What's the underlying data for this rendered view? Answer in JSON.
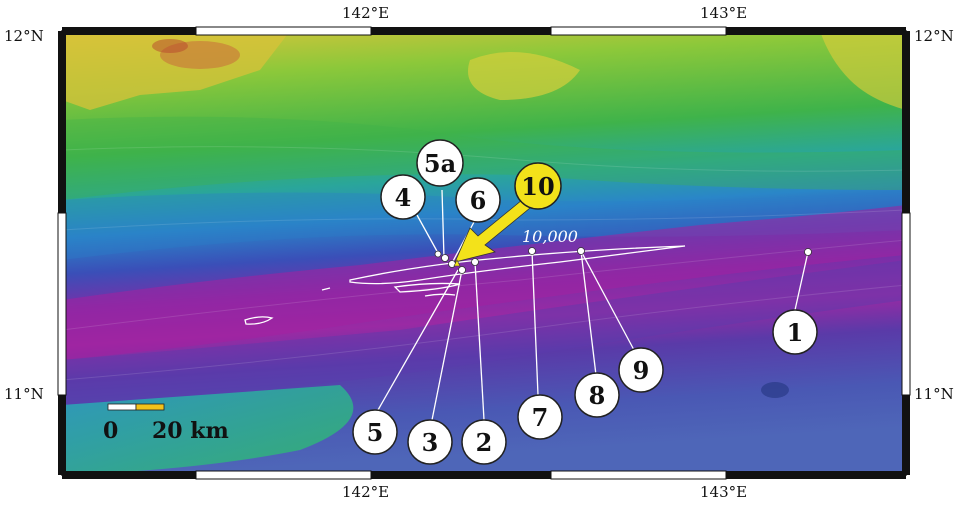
{
  "axes": {
    "top_left_lon": "142°E",
    "top_right_lon": "143°E",
    "bottom_left_lon": "142°E",
    "bottom_right_lon": "143°E",
    "left_top_lat": "12°N",
    "left_bottom_lat": "11°N",
    "right_top_lat": "12°N",
    "right_bottom_lat": "11°N"
  },
  "contour_label": "10,000",
  "scale_bar": {
    "zero": "0",
    "distance": "20 km"
  },
  "stations": [
    {
      "label": "1",
      "fill": "#ffffff"
    },
    {
      "label": "2",
      "fill": "#ffffff"
    },
    {
      "label": "3",
      "fill": "#ffffff"
    },
    {
      "label": "4",
      "fill": "#ffffff"
    },
    {
      "label": "5",
      "fill": "#ffffff"
    },
    {
      "label": "5a",
      "fill": "#ffffff"
    },
    {
      "label": "6",
      "fill": "#ffffff"
    },
    {
      "label": "7",
      "fill": "#ffffff"
    },
    {
      "label": "8",
      "fill": "#ffffff"
    },
    {
      "label": "9",
      "fill": "#ffffff"
    },
    {
      "label": "10",
      "fill": "#f3e21a"
    }
  ],
  "colors": {
    "shallow_yellow": "#e8d43a",
    "green": "#5cbf3a",
    "cyan": "#2fb0c8",
    "blue": "#3a5bc0",
    "deep_purple": "#8a2aa6",
    "trench_magenta": "#a31f9e",
    "arrow_yellow": "#f3e21a"
  }
}
